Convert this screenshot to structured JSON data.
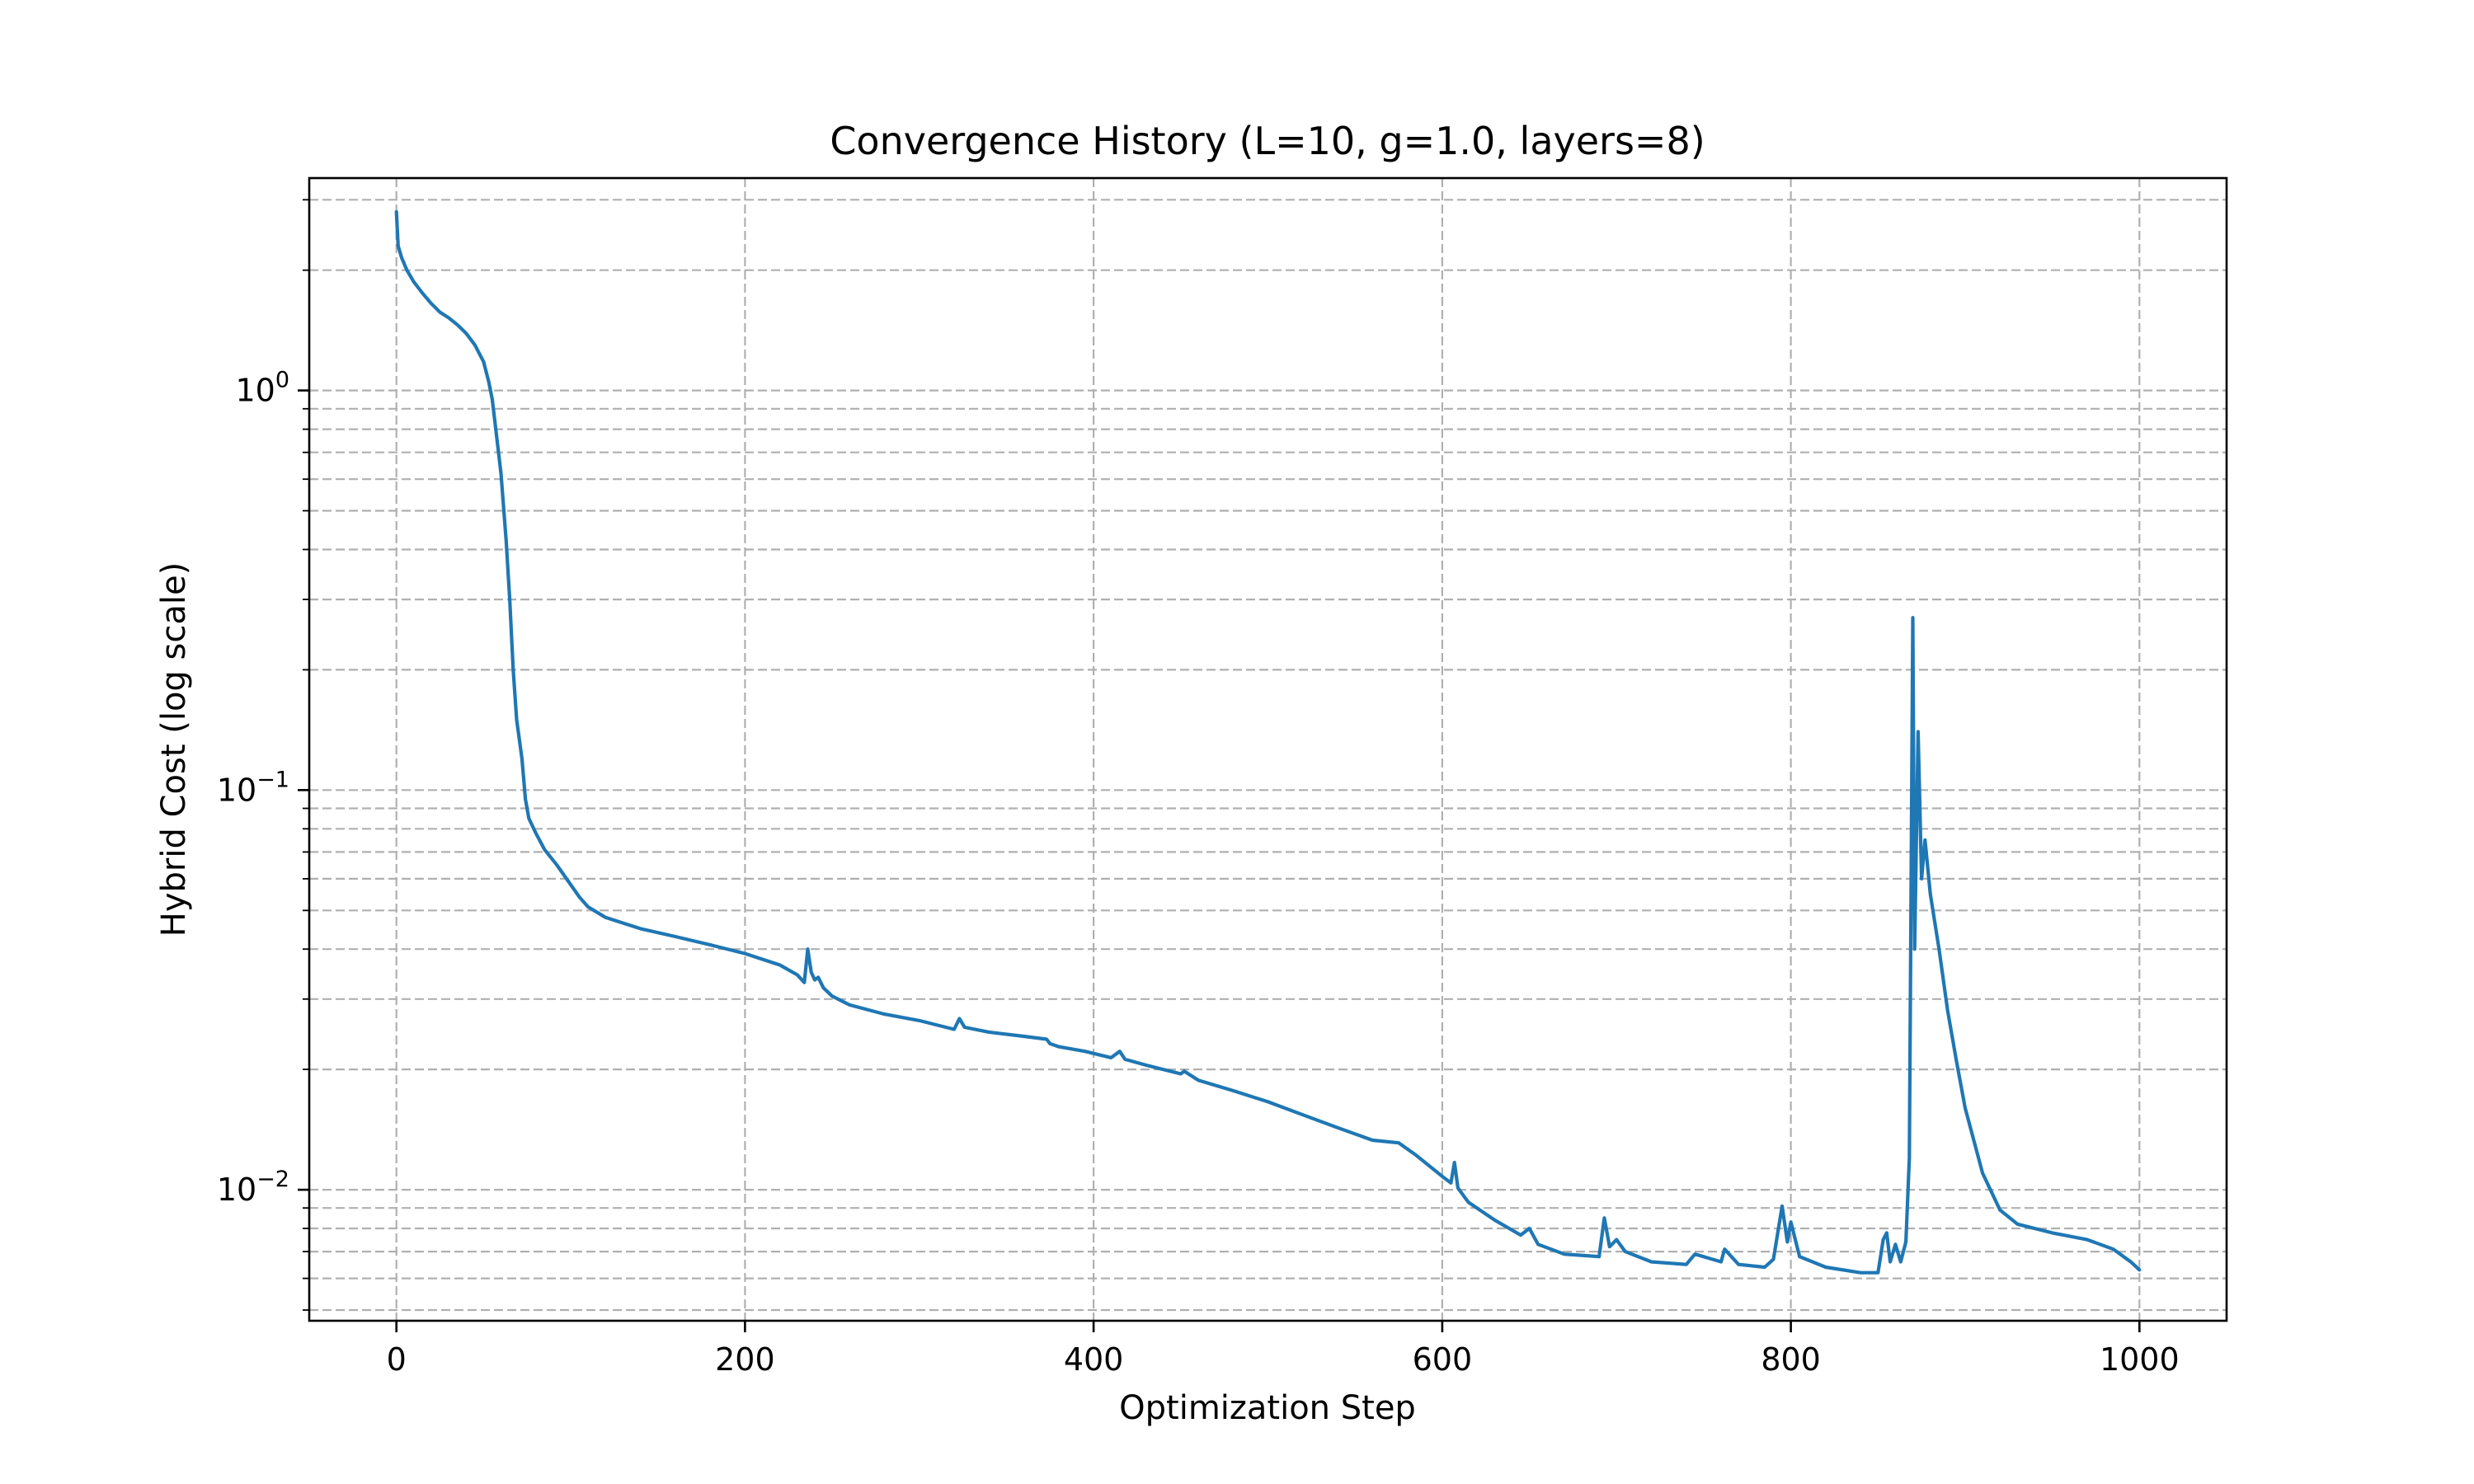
{
  "chart_data": {
    "type": "line",
    "title": "Convergence History (L=10, g=1.0, layers=8)",
    "xlabel": "Optimization Step",
    "ylabel": "Hybrid Cost (log scale)",
    "xlim": [
      -50,
      1050
    ],
    "ylim": [
      0.0047,
      3.4
    ],
    "yscale": "log",
    "grid": true,
    "grid_style": "dashed, major and minor",
    "legend": false,
    "x_ticks": [
      0,
      200,
      400,
      600,
      800,
      1000
    ],
    "x_tick_labels": [
      "0",
      "200",
      "400",
      "600",
      "800",
      "1000"
    ],
    "y_ticks": [
      {
        "value": 1,
        "base": "10",
        "exponent": "0"
      },
      {
        "value": 0.1,
        "base": "10",
        "exponent": "−1"
      },
      {
        "value": 0.01,
        "base": "10",
        "exponent": "−2"
      }
    ],
    "y_minor_ticks": [
      3,
      2,
      0.9,
      0.8,
      0.7,
      0.6,
      0.5,
      0.4,
      0.3,
      0.2,
      0.09,
      0.08,
      0.07,
      0.06,
      0.05,
      0.04,
      0.03,
      0.02,
      0.009,
      0.008,
      0.007,
      0.006,
      0.005
    ],
    "series": [
      {
        "color": "#1f77b4",
        "points": [
          [
            0,
            2.8
          ],
          [
            1,
            2.3
          ],
          [
            3,
            2.15
          ],
          [
            6,
            2.0
          ],
          [
            10,
            1.87
          ],
          [
            15,
            1.75
          ],
          [
            20,
            1.65
          ],
          [
            25,
            1.57
          ],
          [
            30,
            1.52
          ],
          [
            35,
            1.46
          ],
          [
            40,
            1.39
          ],
          [
            45,
            1.3
          ],
          [
            50,
            1.18
          ],
          [
            53,
            1.05
          ],
          [
            55,
            0.95
          ],
          [
            57,
            0.8
          ],
          [
            60,
            0.62
          ],
          [
            63,
            0.42
          ],
          [
            65,
            0.3
          ],
          [
            67,
            0.2
          ],
          [
            69,
            0.15
          ],
          [
            72,
            0.12
          ],
          [
            74,
            0.095
          ],
          [
            76,
            0.085
          ],
          [
            80,
            0.078
          ],
          [
            85,
            0.071
          ],
          [
            92,
            0.065
          ],
          [
            100,
            0.058
          ],
          [
            105,
            0.054
          ],
          [
            110,
            0.051
          ],
          [
            120,
            0.048
          ],
          [
            140,
            0.045
          ],
          [
            160,
            0.043
          ],
          [
            180,
            0.041
          ],
          [
            200,
            0.039
          ],
          [
            220,
            0.0365
          ],
          [
            230,
            0.0345
          ],
          [
            234,
            0.033
          ],
          [
            236,
            0.04
          ],
          [
            238,
            0.035
          ],
          [
            240,
            0.0335
          ],
          [
            242,
            0.034
          ],
          [
            245,
            0.032
          ],
          [
            250,
            0.0305
          ],
          [
            260,
            0.029
          ],
          [
            280,
            0.0275
          ],
          [
            300,
            0.0265
          ],
          [
            320,
            0.0252
          ],
          [
            323,
            0.0268
          ],
          [
            326,
            0.0255
          ],
          [
            340,
            0.0248
          ],
          [
            360,
            0.0242
          ],
          [
            373,
            0.0238
          ],
          [
            375,
            0.0232
          ],
          [
            380,
            0.0228
          ],
          [
            395,
            0.0222
          ],
          [
            410,
            0.0214
          ],
          [
            415,
            0.0222
          ],
          [
            418,
            0.0212
          ],
          [
            430,
            0.0205
          ],
          [
            450,
            0.0195
          ],
          [
            452,
            0.0198
          ],
          [
            460,
            0.0188
          ],
          [
            480,
            0.0177
          ],
          [
            500,
            0.0166
          ],
          [
            520,
            0.0154
          ],
          [
            540,
            0.0143
          ],
          [
            560,
            0.0133
          ],
          [
            575,
            0.0131
          ],
          [
            585,
            0.0122
          ],
          [
            600,
            0.0108
          ],
          [
            605,
            0.0104
          ],
          [
            607,
            0.0117
          ],
          [
            609,
            0.0101
          ],
          [
            615,
            0.0093
          ],
          [
            630,
            0.0084
          ],
          [
            645,
            0.0077
          ],
          [
            650,
            0.008
          ],
          [
            655,
            0.0073
          ],
          [
            670,
            0.0069
          ],
          [
            690,
            0.0068
          ],
          [
            693,
            0.0085
          ],
          [
            696,
            0.0072
          ],
          [
            700,
            0.0075
          ],
          [
            705,
            0.007
          ],
          [
            720,
            0.0066
          ],
          [
            740,
            0.0065
          ],
          [
            745,
            0.0069
          ],
          [
            760,
            0.0066
          ],
          [
            762,
            0.0071
          ],
          [
            770,
            0.0065
          ],
          [
            785,
            0.0064
          ],
          [
            790,
            0.0067
          ],
          [
            795,
            0.0091
          ],
          [
            798,
            0.0074
          ],
          [
            800,
            0.0083
          ],
          [
            805,
            0.0068
          ],
          [
            820,
            0.0064
          ],
          [
            840,
            0.0062
          ],
          [
            850,
            0.0062
          ],
          [
            853,
            0.0075
          ],
          [
            855,
            0.0078
          ],
          [
            857,
            0.0066
          ],
          [
            860,
            0.0073
          ],
          [
            863,
            0.0066
          ],
          [
            866,
            0.0074
          ],
          [
            868,
            0.012
          ],
          [
            870,
            0.27
          ],
          [
            871,
            0.04
          ],
          [
            873,
            0.14
          ],
          [
            875,
            0.06
          ],
          [
            877,
            0.075
          ],
          [
            880,
            0.055
          ],
          [
            885,
            0.04
          ],
          [
            890,
            0.028
          ],
          [
            895,
            0.021
          ],
          [
            900,
            0.016
          ],
          [
            910,
            0.011
          ],
          [
            920,
            0.0089
          ],
          [
            930,
            0.0082
          ],
          [
            950,
            0.0078
          ],
          [
            970,
            0.0075
          ],
          [
            985,
            0.0071
          ],
          [
            995,
            0.0066
          ],
          [
            1000,
            0.0063
          ]
        ]
      }
    ]
  }
}
